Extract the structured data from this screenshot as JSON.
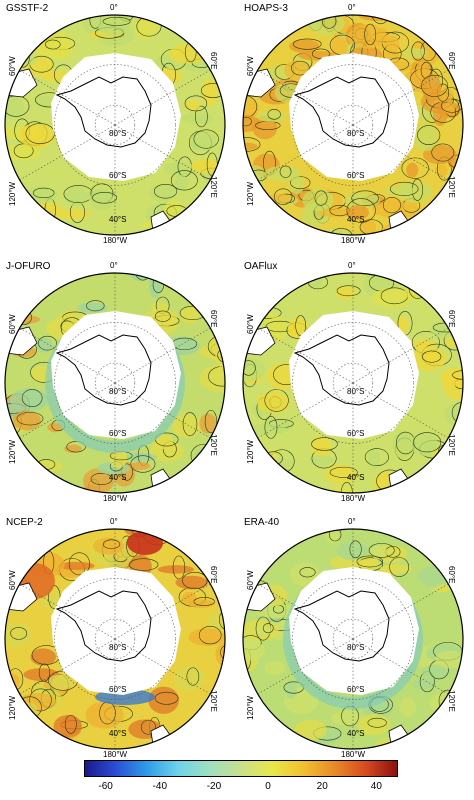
{
  "panels": [
    {
      "name": "GSSTF-2",
      "style": "smooth"
    },
    {
      "name": "HOAPS-3",
      "style": "noisy"
    },
    {
      "name": "J-OFURO",
      "style": "ring"
    },
    {
      "name": "OAFlux",
      "style": "smooth"
    },
    {
      "name": "NCEP-2",
      "style": "warm"
    },
    {
      "name": "ERA-40",
      "style": "cool"
    }
  ],
  "labels": {
    "top": "0°",
    "bottom": "180°W",
    "upper_left": "60°W",
    "upper_right": "60°E",
    "lower_left": "120°W",
    "lower_right": "120°E",
    "lat80": "80°S",
    "lat60": "60°S",
    "lat40": "40°S"
  },
  "colorbar": {
    "ticks": [
      "-60",
      "-40",
      "-20",
      "0",
      "20",
      "40"
    ],
    "tick_values": [
      -60,
      -40,
      -20,
      0,
      20,
      40
    ],
    "min": -68,
    "max": 48,
    "colors": [
      "#1a1a8c",
      "#2b4fd6",
      "#2f9de6",
      "#6fd3e8",
      "#9ee0c0",
      "#c8e08a",
      "#e8e84a",
      "#f0c030",
      "#e88a28",
      "#d84a20",
      "#8c1010"
    ]
  }
}
